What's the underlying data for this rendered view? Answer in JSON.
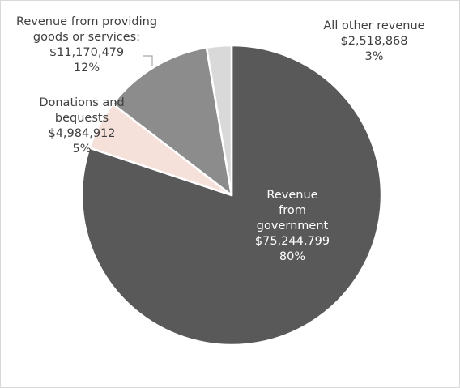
{
  "chart_data": {
    "type": "pie",
    "title": "",
    "slices": [
      {
        "name": "Revenue from government",
        "label_lines": [
          "Revenue",
          "from",
          "government"
        ],
        "value_text": "$75,244,799",
        "value": 75244799,
        "percent_text": "80%",
        "percent": 80,
        "color": "#595959"
      },
      {
        "name": "Donations and bequests",
        "label_lines": [
          "Donations and",
          "bequests"
        ],
        "value_text": "$4,984,912",
        "value": 4984912,
        "percent_text": "5%",
        "percent": 5,
        "color": "#f6e1da"
      },
      {
        "name": "Revenue from providing goods or services:",
        "label_lines": [
          "Revenue from providing",
          "goods or services:"
        ],
        "value_text": "$11,170,479",
        "value": 11170479,
        "percent_text": "12%",
        "percent": 12,
        "color": "#8c8c8c"
      },
      {
        "name": "All other revenue",
        "label_lines": [
          "All other revenue"
        ],
        "value_text": "$2,518,868",
        "value": 2518868,
        "percent_text": "3%",
        "percent": 3,
        "color": "#d9d9d9"
      }
    ],
    "legend": "none",
    "slice_border_color": "#ffffff",
    "leader_line_color": "#a6a6a6"
  }
}
